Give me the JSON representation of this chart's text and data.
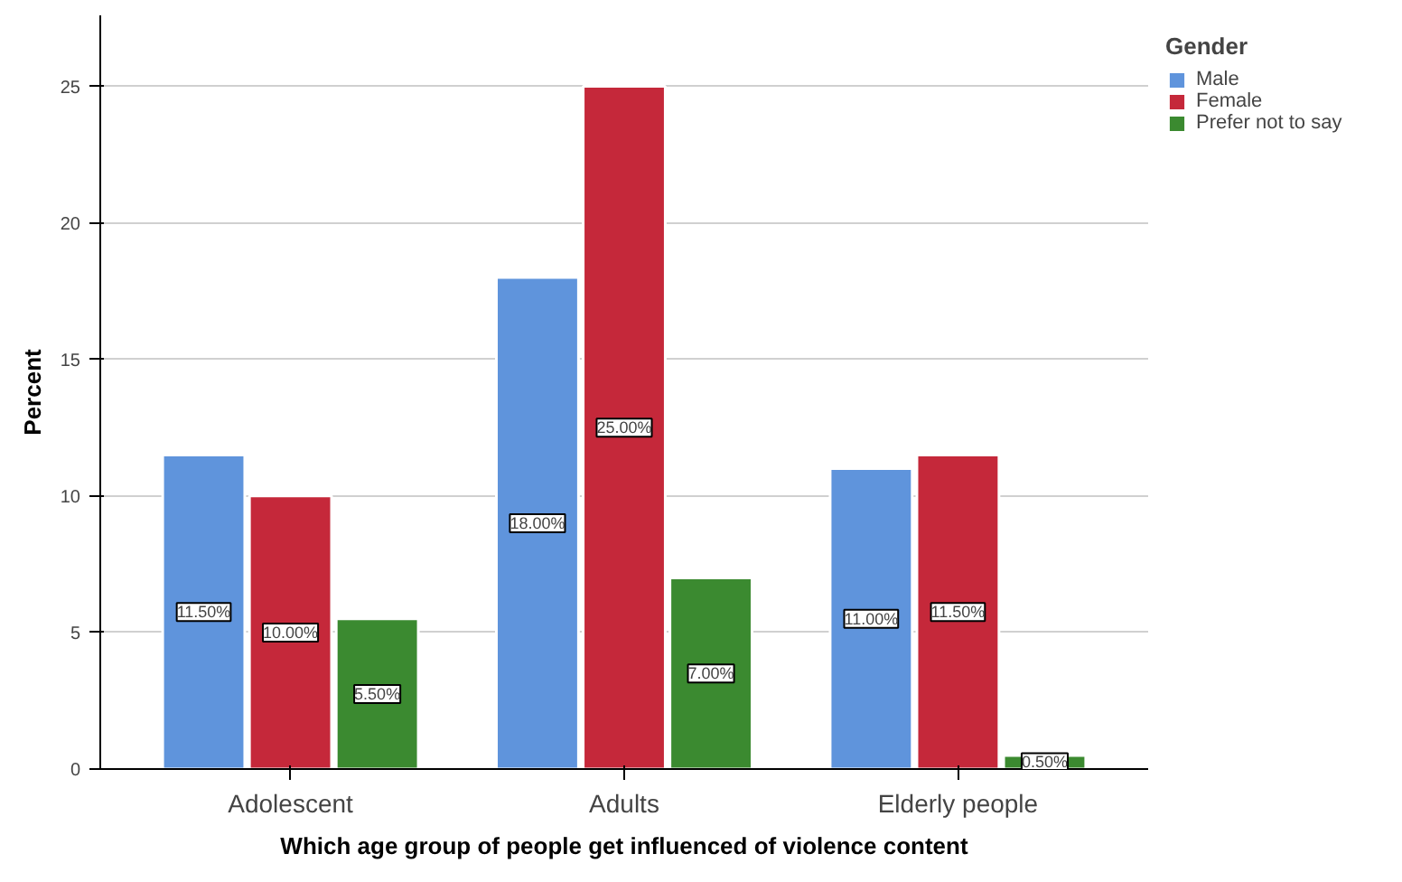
{
  "chart_data": {
    "type": "bar",
    "xlabel": "Which age group of people get influenced of violence content",
    "ylabel": "Percent",
    "legend_title": "Gender",
    "legend": "top right",
    "grid": "y",
    "categories": [
      "Adolescent",
      "Adults",
      "Elderly people"
    ],
    "ylim": [
      0,
      27.6
    ],
    "yticks": [
      0,
      5,
      10,
      15,
      20,
      25
    ],
    "series": [
      {
        "name": "Male",
        "color": "#5f94dc",
        "values": [
          11.5,
          18.0,
          11.0
        ],
        "value_labels": [
          "11.50%",
          "18.00%",
          "11.00%"
        ]
      },
      {
        "name": "Female",
        "color": "#c5283a",
        "values": [
          10.0,
          25.0,
          11.5
        ],
        "value_labels": [
          "10.00%",
          "25.00%",
          "11.50%"
        ]
      },
      {
        "name": "Prefer not to say",
        "color": "#3b8a30",
        "values": [
          5.5,
          7.0,
          0.5
        ],
        "value_labels": [
          "5.50%",
          "7.00%",
          "0.50%"
        ]
      }
    ]
  }
}
